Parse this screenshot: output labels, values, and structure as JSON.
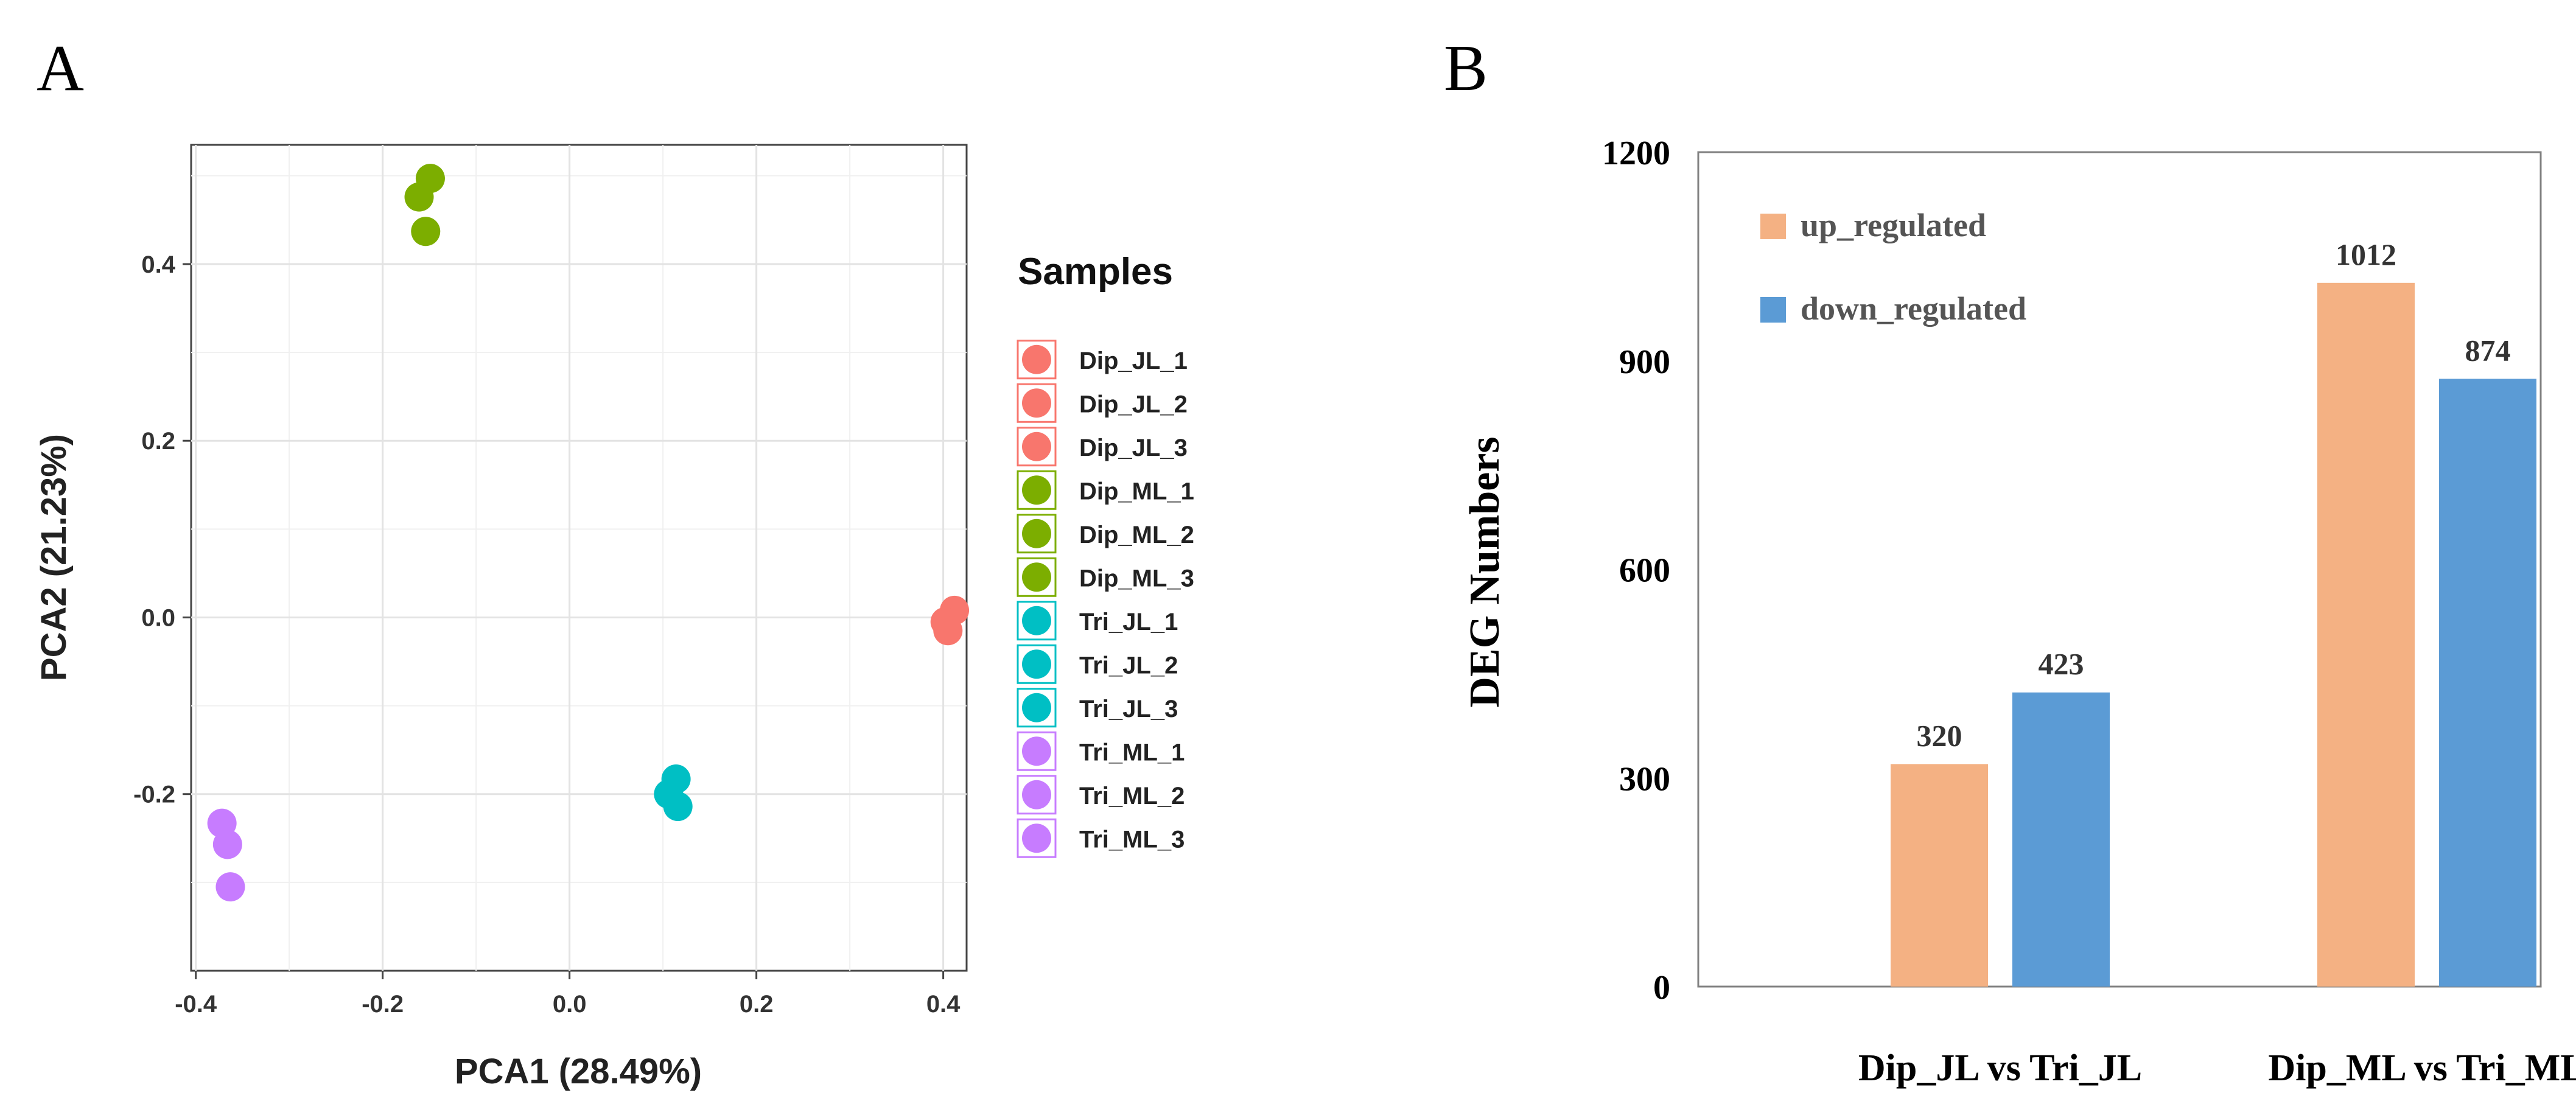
{
  "chart_data": [
    {
      "type": "scatter",
      "panel_label": "A",
      "title": "",
      "xlabel": "PCA1 (28.49%)",
      "ylabel": "PCA2 (21.23%)",
      "xlim": [
        -0.405,
        0.425
      ],
      "ylim": [
        -0.4,
        0.535
      ],
      "xticks": [
        -0.4,
        -0.2,
        0.0,
        0.2,
        0.4
      ],
      "xtick_labels": [
        "-0.4",
        "-0.2",
        "0.0",
        "0.2",
        "0.4"
      ],
      "yticks": [
        -0.2,
        0.0,
        0.2,
        0.4
      ],
      "ytick_labels": [
        "-0.2",
        "0.0",
        "0.2",
        "0.4"
      ],
      "grid": true,
      "legend_title": "Samples",
      "legend_position": "right",
      "series": [
        {
          "name": "Dip_JL_1",
          "color": "#F8766D",
          "x": 0.412,
          "y": 0.008
        },
        {
          "name": "Dip_JL_2",
          "color": "#F8766D",
          "x": 0.402,
          "y": -0.005
        },
        {
          "name": "Dip_JL_3",
          "color": "#F8766D",
          "x": 0.405,
          "y": -0.015
        },
        {
          "name": "Dip_ML_1",
          "color": "#7CAE00",
          "x": -0.149,
          "y": 0.497
        },
        {
          "name": "Dip_ML_2",
          "color": "#7CAE00",
          "x": -0.161,
          "y": 0.476
        },
        {
          "name": "Dip_ML_3",
          "color": "#7CAE00",
          "x": -0.154,
          "y": 0.437
        },
        {
          "name": "Tri_JL_1",
          "color": "#00BFC4",
          "x": 0.114,
          "y": -0.183
        },
        {
          "name": "Tri_JL_2",
          "color": "#00BFC4",
          "x": 0.106,
          "y": -0.2
        },
        {
          "name": "Tri_JL_3",
          "color": "#00BFC4",
          "x": 0.116,
          "y": -0.214
        },
        {
          "name": "Tri_ML_1",
          "color": "#C77CFF",
          "x": -0.372,
          "y": -0.233
        },
        {
          "name": "Tri_ML_2",
          "color": "#C77CFF",
          "x": -0.366,
          "y": -0.257
        },
        {
          "name": "Tri_ML_3",
          "color": "#C77CFF",
          "x": -0.363,
          "y": -0.305
        }
      ]
    },
    {
      "type": "bar",
      "panel_label": "B",
      "title": "",
      "xlabel": "",
      "ylabel": "DEG Numbers",
      "ylim": [
        0,
        1200
      ],
      "yticks": [
        0,
        300,
        600,
        900,
        1200
      ],
      "ytick_labels": [
        "0",
        "300",
        "600",
        "900",
        "1200"
      ],
      "grid": false,
      "categories": [
        "Dip_JL vs Tri_JL",
        "Dip_ML vs Tri_ML"
      ],
      "legend_position": "top-left",
      "series": [
        {
          "name": "up_regulated",
          "color": "#F4B183",
          "values": [
            320,
            1012
          ],
          "labels": [
            "320",
            "1012"
          ]
        },
        {
          "name": "down_regulated",
          "color": "#5B9BD5",
          "values": [
            423,
            874
          ],
          "labels": [
            "423",
            "874"
          ]
        }
      ]
    }
  ]
}
